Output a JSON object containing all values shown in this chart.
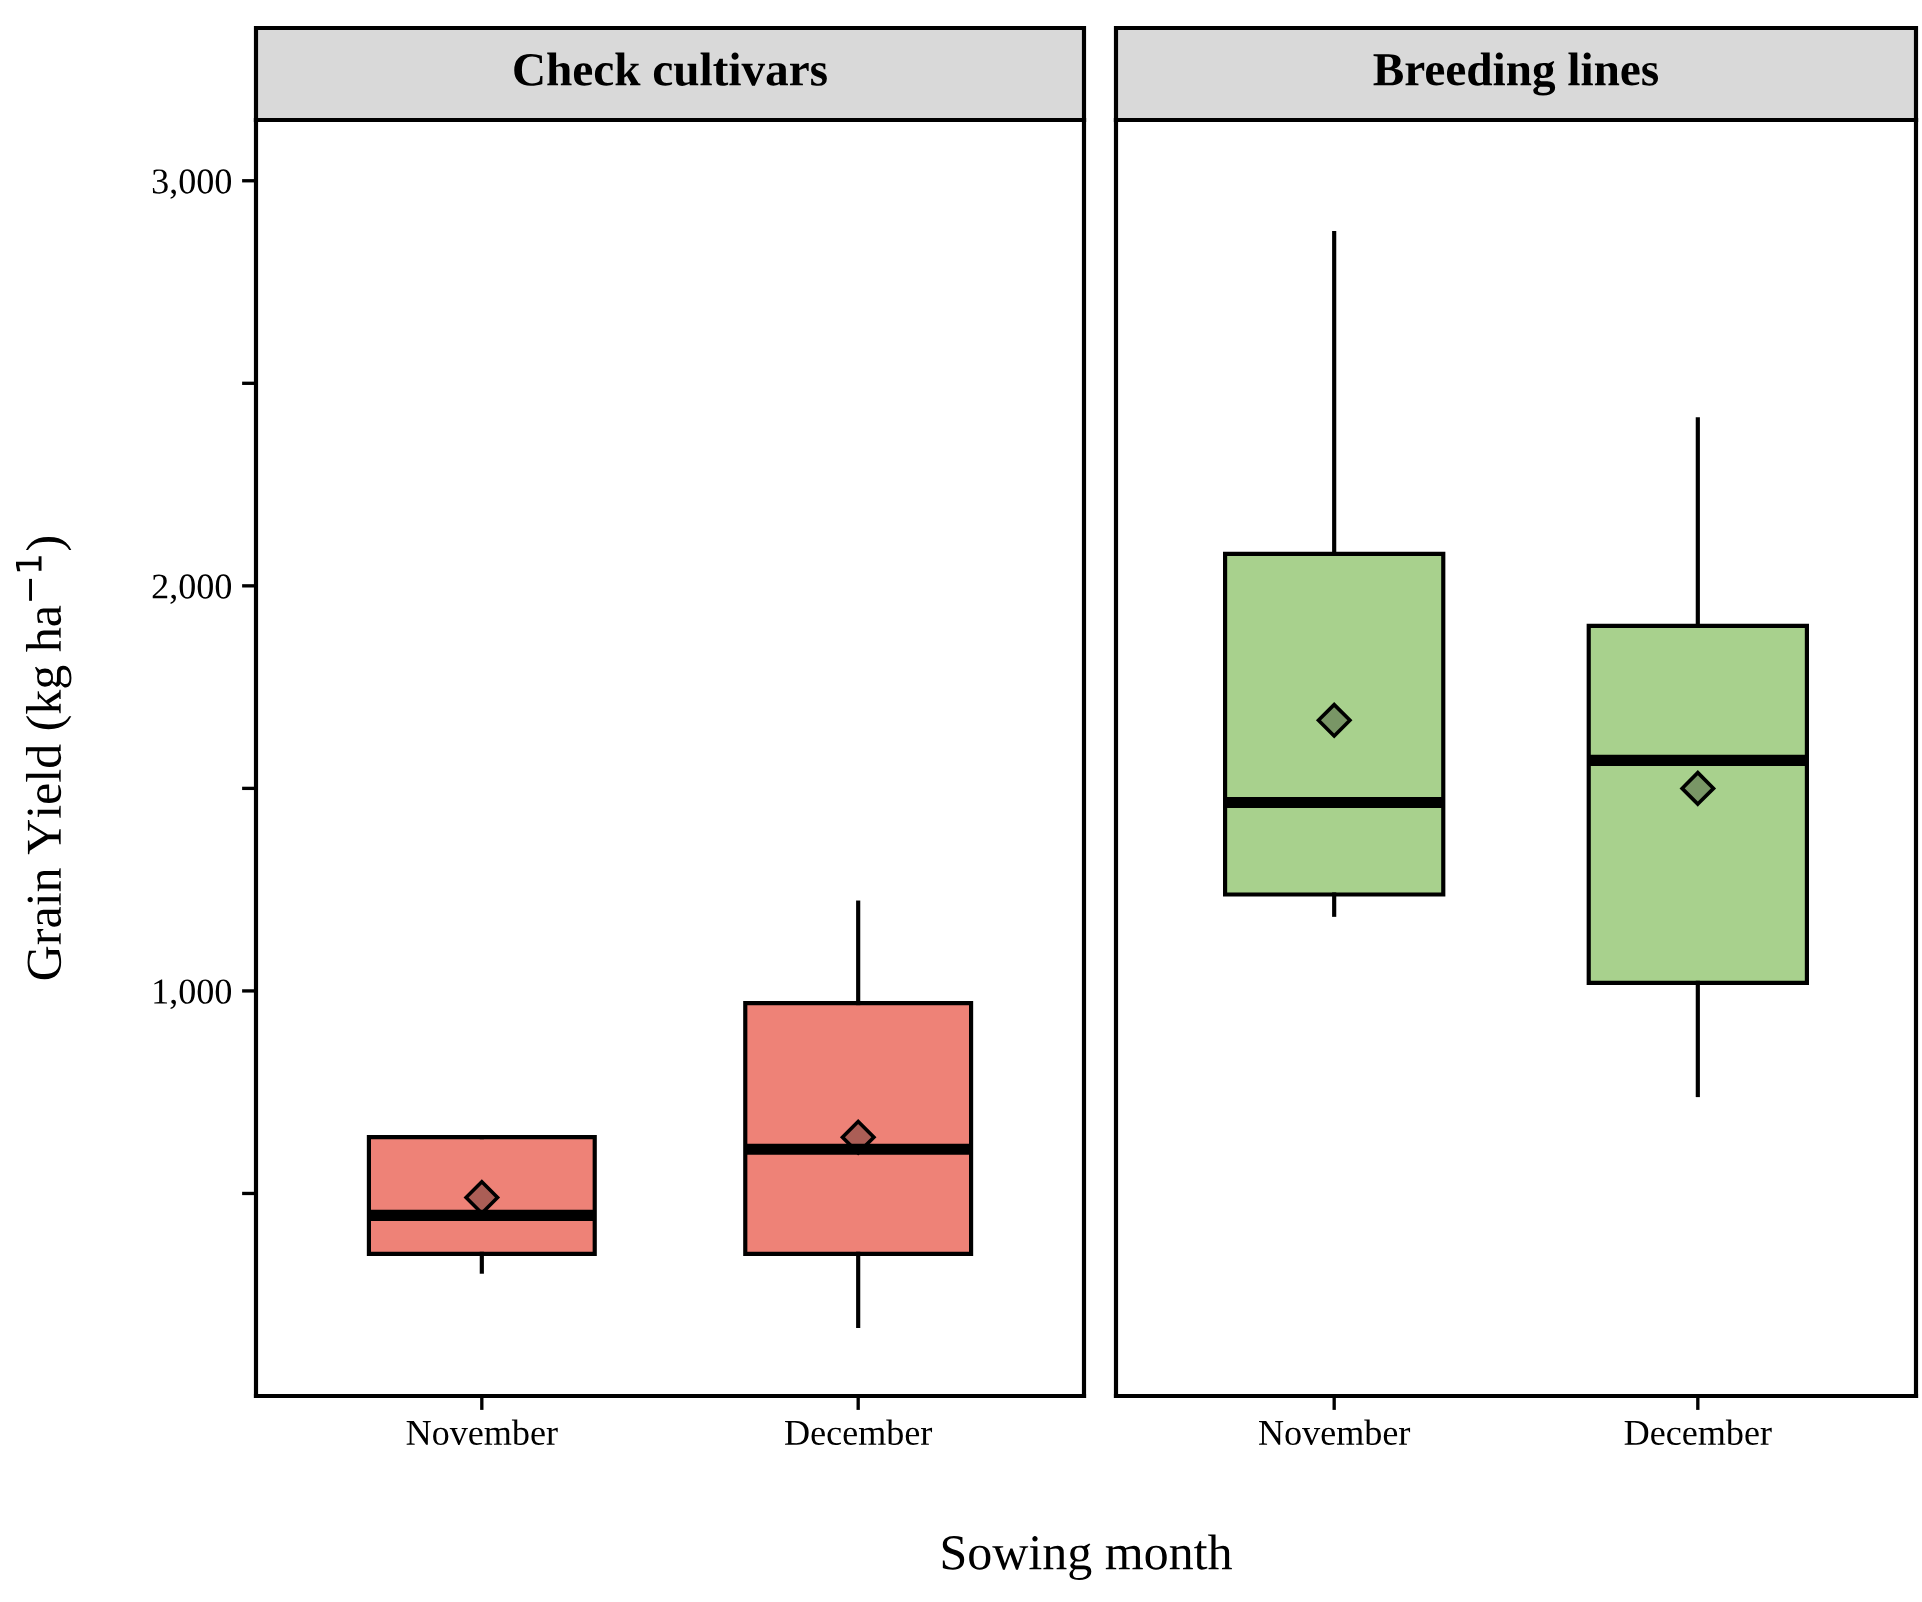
{
  "chart_data": [
    {
      "type": "box",
      "title": "Check cultivars",
      "xlabel": "Sowing month",
      "ylabel": "Grain Yield (kg ha$^{−1}$)",
      "categories": [
        "November",
        "December"
      ],
      "color": "#ee8277",
      "ylim": [
        0,
        3150
      ],
      "yticks": [
        {
          "value": 500,
          "label": null
        },
        {
          "value": 1000,
          "label": "1,000"
        },
        {
          "value": 1500,
          "label": null
        },
        {
          "value": 2000,
          "label": "2,000"
        },
        {
          "value": 2500,
          "label": null
        },
        {
          "value": 3000,
          "label": "3,000"
        }
      ],
      "marker": "diamond",
      "boxes": [
        {
          "low": 307,
          "q1": 351,
          "median": 446,
          "q3": 639,
          "high": 639,
          "mean": 490
        },
        {
          "low": 173,
          "q1": 351,
          "median": 609,
          "q3": 970,
          "high": 1218,
          "mean": 639
        }
      ]
    },
    {
      "type": "box",
      "title": "Breeding lines",
      "categories": [
        "November",
        "December"
      ],
      "color": "#a8d18d",
      "ylim": [
        0,
        3150
      ],
      "tick_labels": "x",
      "marker": "diamond",
      "boxes": [
        {
          "low": 1188,
          "q1": 1238,
          "median": 1465,
          "q3": 2079,
          "high": 2871,
          "mean": 1668
        },
        {
          "low": 743,
          "q1": 1020,
          "median": 1569,
          "q3": 1901,
          "high": 2411,
          "mean": 1500
        }
      ]
    }
  ]
}
